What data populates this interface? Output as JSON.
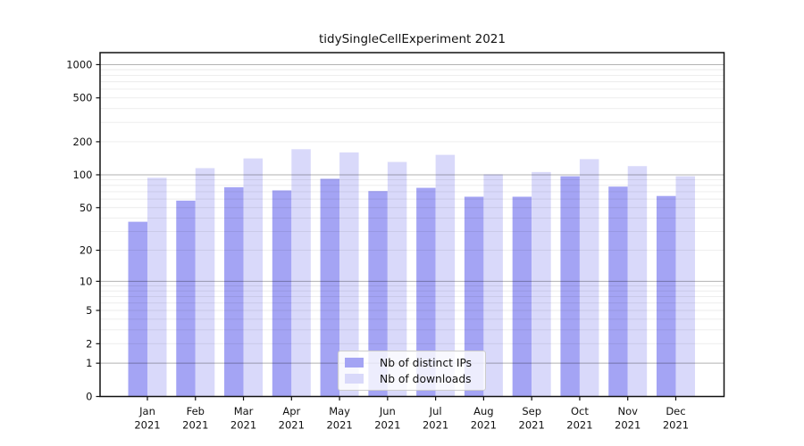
{
  "chart_data": {
    "type": "bar",
    "title": "tidySingleCellExperiment 2021",
    "categories": [
      "Jan 2021",
      "Feb 2021",
      "Mar 2021",
      "Apr 2021",
      "May 2021",
      "Jun 2021",
      "Jul 2021",
      "Aug 2021",
      "Sep 2021",
      "Oct 2021",
      "Nov 2021",
      "Dec 2021"
    ],
    "series": [
      {
        "name": "Nb of distinct IPs",
        "color": "#a4a4f4",
        "values": [
          37,
          58,
          77,
          72,
          92,
          71,
          76,
          63,
          63,
          97,
          78,
          64
        ]
      },
      {
        "name": "Nb of downloads",
        "color": "#d9d9fa",
        "values": [
          94,
          115,
          141,
          171,
          160,
          131,
          152,
          101,
          106,
          139,
          120,
          97
        ]
      }
    ],
    "xlabel": "",
    "ylabel": "",
    "y_ticks": [
      0,
      1,
      2,
      5,
      10,
      20,
      50,
      100,
      200,
      500,
      1000
    ],
    "y_scale": "log1p",
    "ylim": [
      0,
      1285
    ],
    "grid": "on",
    "legend_position": "lower center",
    "colors": {
      "axis": "#111111",
      "major_grid": "rgba(0,0,0,0.30)",
      "minor_grid": "rgba(0,0,0,0.08)",
      "text": "#111111"
    }
  }
}
